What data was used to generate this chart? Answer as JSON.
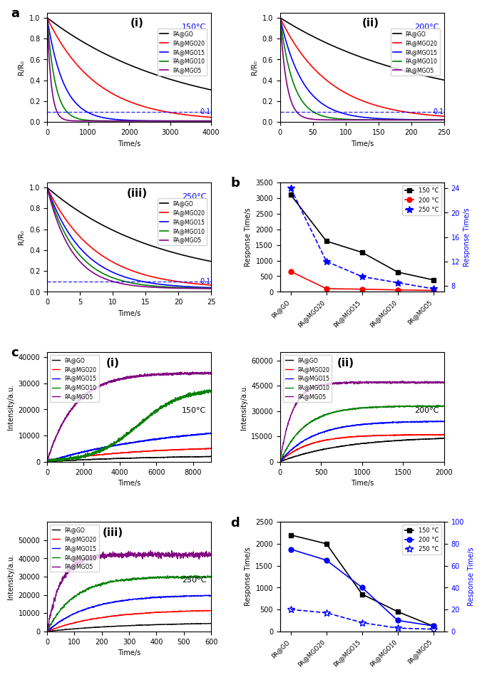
{
  "colors": {
    "PA@GO": "#000000",
    "PA@MGO20": "#ff0000",
    "PA@MGO15": "#0000ff",
    "PA@MGO10": "#008000",
    "PA@MGO5": "#800080"
  },
  "legend_labels": [
    "PA@GO",
    "PA@MGO20",
    "PA@MGO15",
    "PA@MGO10",
    "PA@MGO5"
  ],
  "panel_a_i": {
    "title": "(i)",
    "temp_label": "150°C",
    "xlabel": "Time/s",
    "ylabel": "R/R₀",
    "xlim": [
      0,
      4000
    ],
    "ylim": [
      0,
      1.05
    ],
    "tau": [
      3200,
      1200,
      400,
      200,
      100
    ]
  },
  "panel_a_ii": {
    "title": "(ii)",
    "temp_label": "200°C",
    "xlabel": "Time/s",
    "ylabel": "R/R₀",
    "xlim": [
      0,
      250
    ],
    "ylim": [
      0,
      1.05
    ],
    "tau": [
      220,
      75,
      35,
      20,
      10
    ]
  },
  "panel_a_iii": {
    "title": "(iii)",
    "temp_label": "250°C",
    "xlabel": "Time/s",
    "ylabel": "R/R₀",
    "xlim": [
      0,
      25
    ],
    "ylim": [
      0,
      1.05
    ],
    "tau": [
      17,
      7.5,
      5.5,
      4.5,
      3.8
    ]
  },
  "panel_b": {
    "label": "b",
    "xlabel_categories": [
      "PA@GO",
      "PA@MGO20",
      "PA@MGO15",
      "PA@MGO10",
      "PA@MGO5"
    ],
    "y150": [
      3100,
      1620,
      1260,
      630,
      380
    ],
    "y200": [
      650,
      100,
      85,
      60,
      45
    ],
    "y250": [
      24,
      12,
      9.5,
      8.5,
      7.5
    ],
    "ylabel_left": "Response Time/s",
    "ylabel_right": "Response Time/s",
    "ylim_left": [
      0,
      3500
    ],
    "ylim_right": [
      7,
      25
    ]
  },
  "panel_c_i": {
    "title": "(i)",
    "temp_label": "150°C",
    "xlabel": "Time/s",
    "ylabel": "Intensity/a.u.",
    "xlim": [
      0,
      9000
    ],
    "ylim": [
      0,
      42000
    ]
  },
  "panel_c_ii": {
    "title": "(ii)",
    "temp_label": "200°C",
    "xlabel": "Time/s",
    "ylabel": "Intensity/a.u.",
    "xlim": [
      0,
      2000
    ],
    "ylim": [
      0,
      65000
    ]
  },
  "panel_c_iii": {
    "title": "(iii)",
    "temp_label": "250°C",
    "xlabel": "Time/s",
    "ylabel": "Intensity/a.u.",
    "xlim": [
      0,
      600
    ],
    "ylim": [
      0,
      60000
    ]
  },
  "panel_d": {
    "label": "d",
    "xlabel_categories": [
      "PA@GO",
      "PA@MGO20",
      "PA@MGO15",
      "PA@MGO10",
      "PA@MGO5"
    ],
    "y150": [
      2200,
      2000,
      850,
      450,
      120
    ],
    "y200": [
      75,
      65,
      40,
      10,
      5
    ],
    "y250": [
      20,
      17,
      8,
      3,
      2
    ],
    "ylabel_left": "Response Time/s",
    "ylabel_right": "Response Time/s",
    "ylim_left": [
      0,
      2500
    ],
    "ylim_right": [
      0,
      100
    ]
  }
}
